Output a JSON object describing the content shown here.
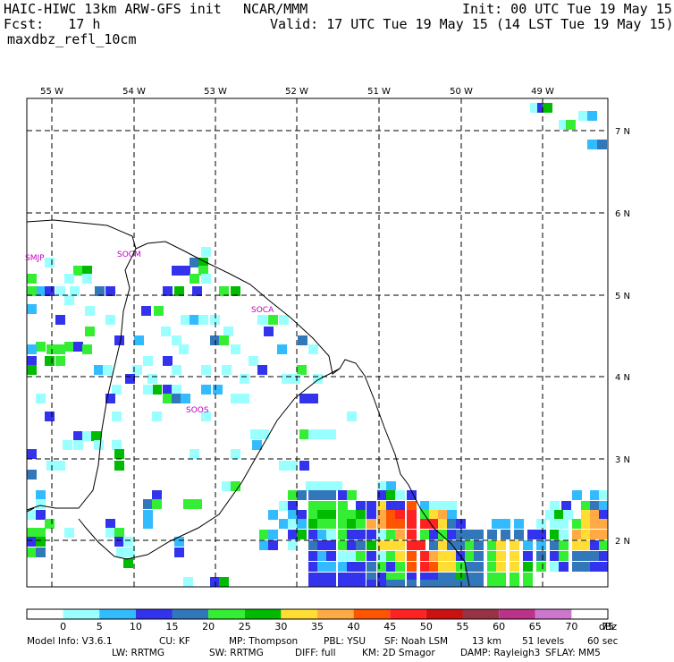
{
  "header": {
    "model": "HAIC-HIWC 13km ARW-GFS init",
    "org": "NCAR/MMM",
    "init": "Init: 00 UTC Tue 19 May 15",
    "fcst": "Fcst:   17 h",
    "valid": "Valid: 17 UTC Tue 19 May 15 (14 LST Tue 19 May 15)",
    "field": "maxdbz_refl_10cm"
  },
  "map": {
    "lon_labels": [
      "55 W",
      "54 W",
      "53 W",
      "52 W",
      "51 W",
      "50 W",
      "49 W"
    ],
    "lat_labels": [
      "7 N",
      "6 N",
      "5 N",
      "4 N",
      "3 N",
      "2 N"
    ],
    "stations": [
      "SMJP",
      "SOCM",
      "SOCA",
      "SOOS"
    ]
  },
  "colorbar": {
    "labels": [
      "0",
      "5",
      "10",
      "15",
      "20",
      "25",
      "30",
      "35",
      "40",
      "45",
      "50",
      "55",
      "60",
      "65",
      "70",
      "75"
    ],
    "unit": "dBz",
    "colors": [
      "#ffffff",
      "#99ffff",
      "#33bbff",
      "#3333ee",
      "#3377bb",
      "#33ee33",
      "#00bb00",
      "#ffdd33",
      "#ffaa44",
      "#ff5500",
      "#ff2222",
      "#cc1111",
      "#993344",
      "#bb3388",
      "#cc77cc"
    ]
  },
  "footer": {
    "line1": [
      "Model Info: V3.6.1",
      "CU: KF",
      "MP: Thompson",
      "PBL: YSU",
      "SF: Noah LSM",
      "13 km",
      "51 levels",
      "60 sec"
    ],
    "line2": [
      "LW: RRTMG",
      "SW: RRTMG",
      "DIFF: full",
      "KM: 2D Smagor",
      "DAMP: Rayleigh3",
      "SFLAY: MM5"
    ]
  }
}
